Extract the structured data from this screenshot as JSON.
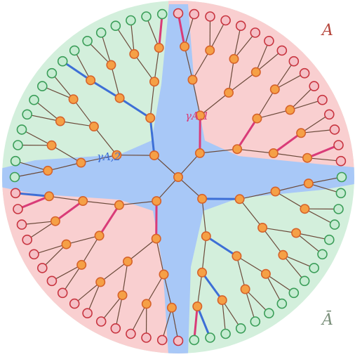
{
  "labels": {
    "region_a": "A",
    "region_a_bar": "Ā",
    "gamma_1": "γA,1",
    "gamma_2": "γA,2"
  },
  "colors": {
    "region_a_fill": "#f9cfd0",
    "region_abar_fill": "#d3efdc",
    "cut_region_fill": "#a8c8f7",
    "edge_plain": "#6b4a3a",
    "edge_cut_1": "#d93b78",
    "edge_cut_2": "#3d6fd6",
    "node_bulk_fill": "#f5a046",
    "node_bulk_stroke": "#d6622a",
    "node_boundary_a_fill": "#f5c0c6",
    "node_boundary_a_stroke": "#c8343f",
    "node_boundary_abar_fill": "#c6ecd2",
    "node_boundary_abar_stroke": "#3a9d58",
    "label_a": "#b5453b",
    "label_abar": "#7a8f7a",
    "label_gamma_1": "#d93b78",
    "label_gamma_2": "#3d6fd6"
  },
  "tree": {
    "root_degree": 4,
    "branching": 2,
    "depth": 5
  }
}
